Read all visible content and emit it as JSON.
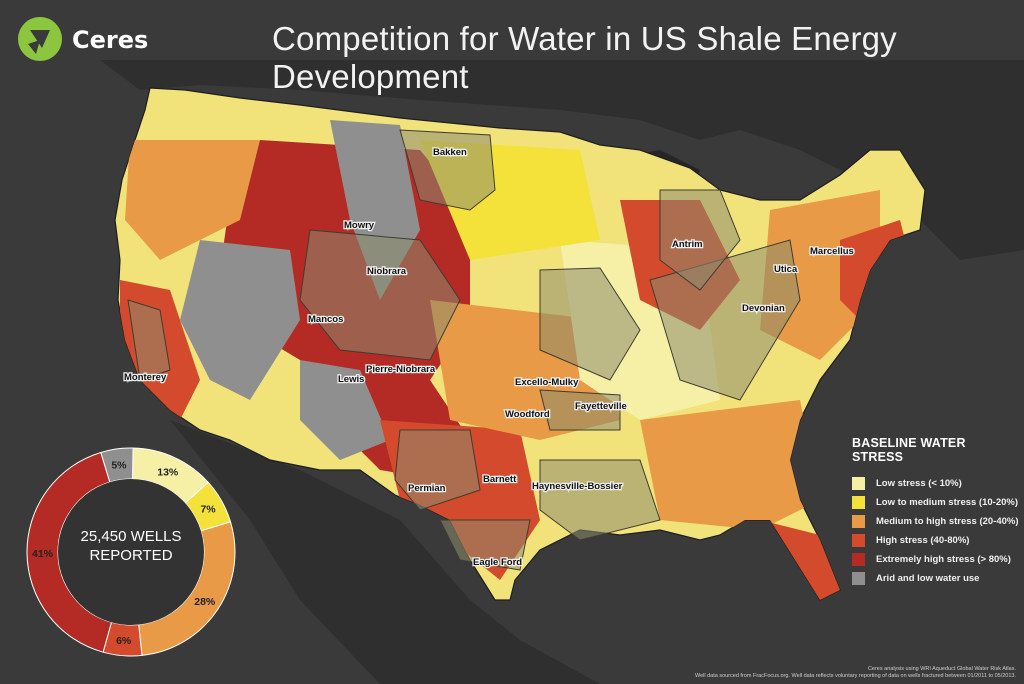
{
  "header": {
    "brand_name": "Ceres",
    "title": "Competition for Water in US Shale Energy Development"
  },
  "legend": {
    "title": "BASELINE WATER STRESS",
    "items": [
      {
        "label": "Low stress (< 10%)",
        "color": "#f6f0a6"
      },
      {
        "label": "Low to medium stress (10-20%)",
        "color": "#f4e23a"
      },
      {
        "label": "Medium to high stress (20-40%)",
        "color": "#e89a46"
      },
      {
        "label": "High stress (40-80%)",
        "color": "#d44a2c"
      },
      {
        "label": "Extremely high stress (> 80%)",
        "color": "#b42a24"
      },
      {
        "label": "Arid and low water use",
        "color": "#8f8f8f"
      }
    ]
  },
  "donut": {
    "center_line1": "25,450 WELLS",
    "center_line2": "REPORTED",
    "segments": [
      {
        "category": "Low stress (< 10%)",
        "percent": 13,
        "label": "13%",
        "color": "#f6f0a6"
      },
      {
        "category": "Low to medium stress (10-20%)",
        "percent": 7,
        "label": "7%",
        "color": "#f4e23a"
      },
      {
        "category": "Medium to high stress (20-40%)",
        "percent": 28,
        "label": "28%",
        "color": "#e89a46"
      },
      {
        "category": "High stress (40-80%)",
        "percent": 6,
        "label": "6%",
        "color": "#d44a2c"
      },
      {
        "category": "Extremely high stress (> 80%)",
        "percent": 41,
        "label": "41%",
        "color": "#b42a24"
      },
      {
        "category": "Arid and low water use",
        "percent": 5,
        "label": "5%",
        "color": "#8f8f8f"
      }
    ]
  },
  "plays": [
    {
      "name": "Bakken"
    },
    {
      "name": "Mowry"
    },
    {
      "name": "Niobrara"
    },
    {
      "name": "Mancos"
    },
    {
      "name": "Monterey"
    },
    {
      "name": "Lewis"
    },
    {
      "name": "Pierre-Niobrara"
    },
    {
      "name": "Antrim"
    },
    {
      "name": "Utica"
    },
    {
      "name": "Marcellus"
    },
    {
      "name": "Devonian"
    },
    {
      "name": "Excello-Mulky"
    },
    {
      "name": "Fayetteville"
    },
    {
      "name": "Woodford"
    },
    {
      "name": "Barnett"
    },
    {
      "name": "Haynesville-Bossier"
    },
    {
      "name": "Permian"
    },
    {
      "name": "Eagle Ford"
    }
  ],
  "credits": {
    "line1": "Ceres analysis using WRI Aqueduct Global Water Risk Atlas.",
    "line2": "Well data sourced from FracFocus.org. Well data reflects voluntary reporting of data on wells fractured between 01/2011 to 05/2013."
  },
  "colors": {
    "background": "#3a3a3a",
    "ocean": "#2e2e2e",
    "brand_green": "#8cc63f"
  }
}
